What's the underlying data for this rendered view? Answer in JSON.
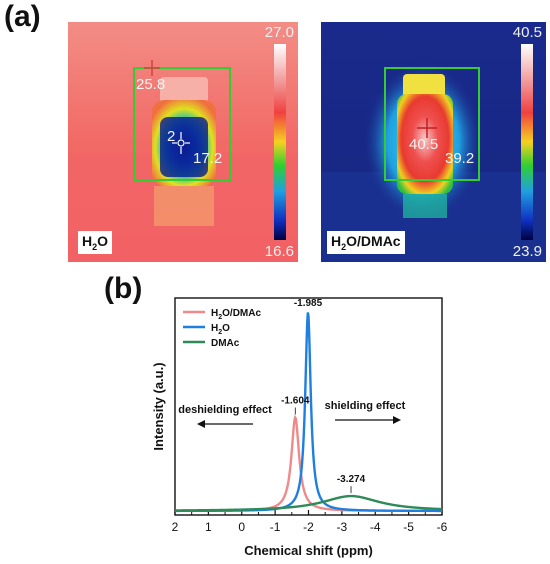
{
  "panels": {
    "a": "(a)",
    "b": "(b)"
  },
  "thermal_left": {
    "scale_max": "27.0",
    "scale_min": "16.6",
    "readout_top": "25.8",
    "readout_center": "2",
    "readout_right": "17.2",
    "label_main": "H",
    "label_sub": "2",
    "label_rest": "O"
  },
  "thermal_right": {
    "scale_max": "40.5",
    "scale_min": "23.9",
    "readout_center": "40.5",
    "readout_right": "39.2",
    "label_main": "H",
    "label_sub": "2",
    "label_rest": "O/DMAc"
  },
  "colors": {
    "h2o_dmac": "#f08a8a",
    "h2o": "#1f7fe0",
    "dmac": "#2e8b57",
    "box": "#33cc33"
  },
  "chart_data": {
    "type": "line",
    "xlabel": "Chemical shift (ppm)",
    "ylabel": "Intensity (a.u.)",
    "xlim": [
      2,
      -6
    ],
    "x_reversed": true,
    "x_ticks": [
      "2",
      "1",
      "0",
      "-1",
      "-2",
      "-3",
      "-4",
      "-5",
      "-6"
    ],
    "y_ticks_shown": false,
    "legend_position": "top-left",
    "series": [
      {
        "name": "H2O/DMAc",
        "legend_main": "H",
        "legend_sub": "2",
        "legend_rest": "O/DMAc",
        "peak_x": -1.604,
        "peak_height": 0.47,
        "half_width": 0.14,
        "peak_label": "-1.604"
      },
      {
        "name": "H2O",
        "legend_main": "H",
        "legend_sub": "2",
        "legend_rest": "O",
        "peak_x": -1.985,
        "peak_height": 1.0,
        "half_width": 0.1,
        "peak_label": "-1.985"
      },
      {
        "name": "DMAc",
        "legend_main": "DMAc",
        "legend_sub": "",
        "legend_rest": "",
        "peak_x": -3.274,
        "peak_height": 0.075,
        "half_width": 1.05,
        "peak_label": "-3.274"
      }
    ],
    "annotations": {
      "left_text": "deshielding effect",
      "right_text": "shielding effect"
    }
  }
}
